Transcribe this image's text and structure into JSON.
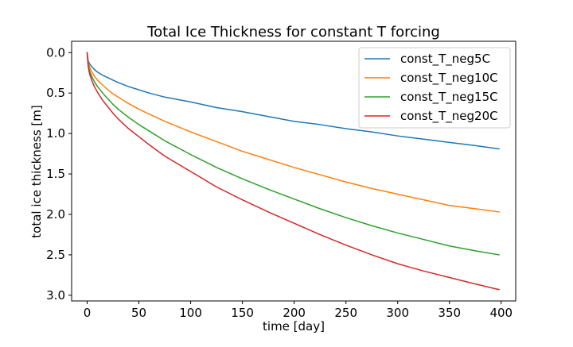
{
  "chart_data": {
    "type": "line",
    "title": "Total Ice Thickness for constant T forcing",
    "xlabel": "time [day]",
    "ylabel": "total ice thickness [m]",
    "xlim": [
      -15,
      414
    ],
    "ylim": [
      3.07,
      -0.14
    ],
    "y_inverted": true,
    "grid": false,
    "legend_position": "upper right",
    "xticks": [
      0,
      50,
      100,
      150,
      200,
      250,
      300,
      350,
      400
    ],
    "xtick_labels": [
      "0",
      "50",
      "100",
      "150",
      "200",
      "250",
      "300",
      "350",
      "400"
    ],
    "yticks": [
      0.0,
      0.5,
      1.0,
      1.5,
      2.0,
      2.5,
      3.0
    ],
    "ytick_labels": [
      "0.0",
      "0.5",
      "1.0",
      "1.5",
      "2.0",
      "2.5",
      "3.0"
    ],
    "x": [
      0,
      1,
      2,
      3,
      5,
      7,
      10,
      15,
      20,
      25,
      30,
      40,
      50,
      60,
      75,
      100,
      125,
      150,
      175,
      200,
      225,
      250,
      275,
      300,
      325,
      350,
      375,
      398
    ],
    "series": [
      {
        "name": "const_T_neg5C",
        "color": "#1f77b4",
        "values": [
          0.0,
          0.1,
          0.13,
          0.15,
          0.18,
          0.21,
          0.24,
          0.28,
          0.31,
          0.34,
          0.37,
          0.42,
          0.46,
          0.5,
          0.55,
          0.61,
          0.68,
          0.73,
          0.79,
          0.85,
          0.89,
          0.94,
          0.98,
          1.03,
          1.07,
          1.11,
          1.15,
          1.19
        ]
      },
      {
        "name": "const_T_neg10C",
        "color": "#ff7f0e",
        "values": [
          0.0,
          0.12,
          0.16,
          0.2,
          0.25,
          0.29,
          0.34,
          0.4,
          0.46,
          0.51,
          0.55,
          0.63,
          0.7,
          0.76,
          0.85,
          0.98,
          1.1,
          1.22,
          1.32,
          1.42,
          1.51,
          1.6,
          1.68,
          1.75,
          1.82,
          1.89,
          1.93,
          1.97
        ]
      },
      {
        "name": "const_T_neg15C",
        "color": "#2ca02c",
        "values": [
          0.0,
          0.15,
          0.21,
          0.25,
          0.31,
          0.36,
          0.42,
          0.5,
          0.57,
          0.64,
          0.7,
          0.8,
          0.89,
          0.97,
          1.09,
          1.26,
          1.42,
          1.56,
          1.69,
          1.81,
          1.93,
          2.04,
          2.14,
          2.23,
          2.31,
          2.39,
          2.45,
          2.5
        ]
      },
      {
        "name": "const_T_neg20C",
        "color": "#d62728",
        "values": [
          0.0,
          0.17,
          0.24,
          0.29,
          0.36,
          0.42,
          0.49,
          0.59,
          0.67,
          0.75,
          0.82,
          0.94,
          1.04,
          1.14,
          1.28,
          1.47,
          1.66,
          1.82,
          1.97,
          2.11,
          2.25,
          2.38,
          2.5,
          2.61,
          2.7,
          2.78,
          2.86,
          2.93
        ]
      }
    ]
  }
}
